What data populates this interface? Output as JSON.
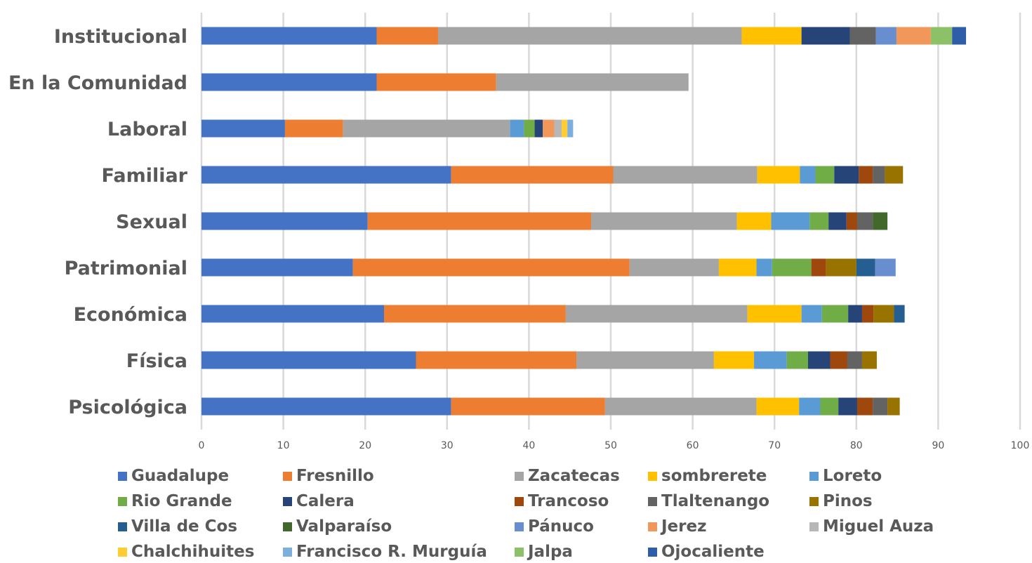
{
  "chart_data": {
    "type": "bar",
    "orientation": "horizontal",
    "stacked": true,
    "categories": [
      "Institucional",
      "En la Comunidad",
      "Laboral",
      "Familiar",
      "Sexual",
      "Patrimonial",
      "Económica",
      "Física",
      "Psicológica"
    ],
    "xlim": [
      0,
      100
    ],
    "xticks": [
      0,
      10,
      20,
      30,
      40,
      50,
      60,
      70,
      80,
      90,
      100
    ],
    "grid": "vertical",
    "legend_position": "bottom",
    "series": [
      {
        "name": "Guadalupe",
        "color": "#4472C4",
        "values": [
          21.4,
          21.4,
          10.2,
          30.5,
          20.3,
          18.5,
          22.3,
          26.2,
          30.5
        ]
      },
      {
        "name": "Fresnillo",
        "color": "#ED7D31",
        "values": [
          7.5,
          14.6,
          7.1,
          19.8,
          27.3,
          33.8,
          22.2,
          19.6,
          18.8
        ]
      },
      {
        "name": "Zacatecas",
        "color": "#A5A5A5",
        "values": [
          37.1,
          23.5,
          20.4,
          17.6,
          17.8,
          10.9,
          22.2,
          16.8,
          18.5
        ]
      },
      {
        "name": "sombrerete",
        "color": "#FFC000",
        "values": [
          7.3,
          0,
          0,
          5.2,
          4.2,
          4.6,
          6.6,
          4.9,
          5.2
        ]
      },
      {
        "name": "Loreto",
        "color": "#5B9BD5",
        "values": [
          0,
          0,
          1.7,
          1.9,
          4.7,
          1.9,
          2.5,
          4.0,
          2.6
        ]
      },
      {
        "name": "Rio Grande",
        "color": "#70AD47",
        "values": [
          0,
          0,
          1.3,
          2.3,
          2.3,
          4.8,
          3.2,
          2.6,
          2.2
        ]
      },
      {
        "name": "Calera",
        "color": "#264478",
        "values": [
          5.9,
          0,
          1.0,
          3.0,
          2.2,
          0,
          1.7,
          2.7,
          2.3
        ]
      },
      {
        "name": "Trancoso",
        "color": "#9E480E",
        "values": [
          0,
          0,
          0,
          1.7,
          1.3,
          1.8,
          1.4,
          2.1,
          1.9
        ]
      },
      {
        "name": "Tlaltenango",
        "color": "#636363",
        "values": [
          3.2,
          0,
          0,
          1.5,
          1.9,
          0,
          0,
          1.8,
          1.8
        ]
      },
      {
        "name": "Pinos",
        "color": "#997300",
        "values": [
          0,
          0,
          0,
          2.2,
          0,
          3.7,
          2.5,
          1.8,
          1.5
        ]
      },
      {
        "name": "Villa de Cos",
        "color": "#255E91",
        "values": [
          0,
          0,
          0,
          0,
          0,
          2.3,
          1.3,
          0,
          0
        ]
      },
      {
        "name": "Valparaíso",
        "color": "#43682B",
        "values": [
          0,
          0,
          0,
          0,
          1.8,
          0,
          0,
          0,
          0
        ]
      },
      {
        "name": "Pánuco",
        "color": "#698ED0",
        "values": [
          2.5,
          0,
          0,
          0,
          0,
          2.5,
          0,
          0,
          0
        ]
      },
      {
        "name": "Jerez",
        "color": "#F1975A",
        "values": [
          4.2,
          0,
          1.4,
          0,
          0,
          0,
          0,
          0,
          0
        ]
      },
      {
        "name": "Miguel Auza",
        "color": "#B7B7B7",
        "values": [
          0,
          0,
          0.9,
          0,
          0,
          0,
          0,
          0,
          0
        ]
      },
      {
        "name": "Chalchihuites",
        "color": "#FFCD33",
        "values": [
          0,
          0,
          0.7,
          0,
          0,
          0,
          0,
          0,
          0
        ]
      },
      {
        "name": "Francisco R. Murguía",
        "color": "#7CAFDD",
        "values": [
          0,
          0,
          0.7,
          0,
          0,
          0,
          0,
          0,
          0
        ]
      },
      {
        "name": "Jalpa",
        "color": "#8CC168",
        "values": [
          2.6,
          0,
          0,
          0,
          0,
          0,
          0,
          0,
          0
        ]
      },
      {
        "name": "Ojocaliente",
        "color": "#2E5EA8",
        "values": [
          1.7,
          0,
          0,
          0,
          0,
          0,
          0,
          0,
          0
        ]
      }
    ]
  }
}
